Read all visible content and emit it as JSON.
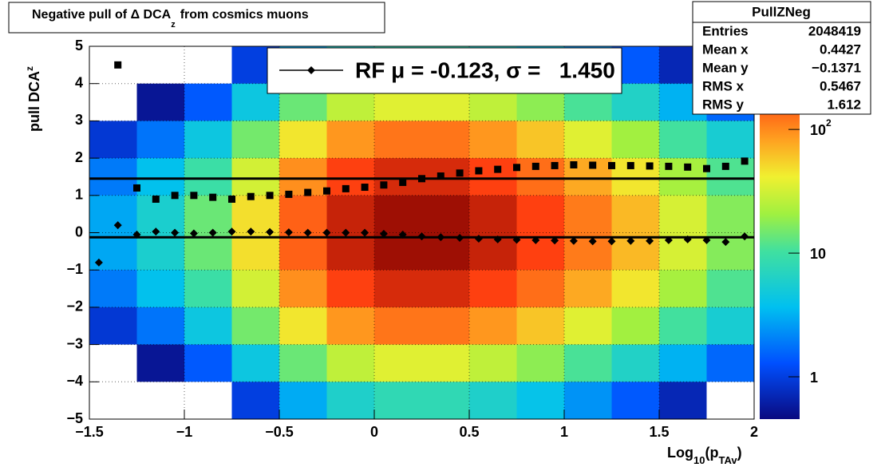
{
  "chart_data": {
    "type": "heatmap_profile",
    "title": {
      "text": "Negative pull of Δ DCA",
      "sub": "z",
      "rest": "from cosmics muons"
    },
    "ylabel": {
      "text": "pull DCA",
      "sub": "z"
    },
    "xlabel": {
      "text": "Log",
      "sub": "10",
      "mid": "(p",
      "subsub": "TAv",
      "end": ")"
    },
    "xlim": [
      -1.5,
      2
    ],
    "ylim": [
      -5,
      5
    ],
    "xticks": [
      {
        "value": -1.5,
        "label": "−1.5"
      },
      {
        "value": -1,
        "label": "−1"
      },
      {
        "value": -0.5,
        "label": "−0.5"
      },
      0,
      0.5,
      1,
      1.5,
      2
    ],
    "yticks": [
      {
        "value": -5,
        "label": "−5"
      },
      {
        "value": -4,
        "label": "−4"
      },
      {
        "value": -3,
        "label": "−3"
      },
      {
        "value": -2,
        "label": "−2"
      },
      {
        "value": -1,
        "label": "−1"
      },
      0,
      1,
      2,
      3,
      4,
      5
    ],
    "grid": true,
    "zlim": [
      0.455,
      470
    ],
    "zlog": true,
    "zticks": [
      1,
      10,
      {
        "value": 100,
        "label": "10",
        "exponent": "2"
      }
    ],
    "xbins": [
      -1.5,
      -1.25,
      -1,
      -0.75,
      -0.5,
      -0.25,
      0,
      0.25,
      0.5,
      0.75,
      1,
      1.25,
      1.5,
      1.75,
      2
    ],
    "ybins": [
      5,
      4,
      3,
      2,
      1,
      0,
      -1,
      -2,
      -3,
      -4,
      -5
    ],
    "z": [
      [
        0.06,
        0.12,
        0.3,
        1,
        3,
        6,
        8,
        8,
        6,
        4,
        2.4,
        1.4,
        0.7,
        0.36
      ],
      [
        0.27,
        0.54,
        1.4,
        4.5,
        14,
        27,
        36,
        36,
        27,
        18,
        11,
        6.3,
        3.2,
        1.6
      ],
      [
        0.9,
        1.8,
        4.5,
        15,
        45,
        90,
        120,
        120,
        90,
        60,
        36,
        21,
        10.5,
        5.4
      ],
      [
        1.9,
        3.8,
        9.6,
        32,
        96,
        192,
        256,
        256,
        192,
        128,
        77,
        45,
        22,
        11.5
      ],
      [
        2.9,
        5.7,
        14,
        48,
        143,
        285,
        380,
        380,
        285,
        190,
        114,
        67,
        33,
        17
      ],
      [
        2.9,
        5.7,
        14,
        48,
        143,
        285,
        380,
        380,
        285,
        190,
        114,
        67,
        33,
        17
      ],
      [
        1.9,
        3.8,
        9.6,
        32,
        96,
        192,
        256,
        256,
        192,
        128,
        77,
        45,
        22,
        11.5
      ],
      [
        0.9,
        1.8,
        4.5,
        15,
        45,
        90,
        120,
        120,
        90,
        60,
        36,
        21,
        10.5,
        5.4
      ],
      [
        0.27,
        0.54,
        1.4,
        4.5,
        14,
        27,
        36,
        36,
        27,
        18,
        11,
        6.3,
        3.2,
        1.6
      ],
      [
        0.06,
        0.12,
        0.3,
        1,
        3,
        6,
        8,
        8,
        6,
        4,
        2.4,
        1.4,
        0.7,
        0.36
      ]
    ],
    "x": [
      -1.45,
      -1.35,
      -1.25,
      -1.15,
      -1.05,
      -0.95,
      -0.85,
      -0.75,
      -0.65,
      -0.55,
      -0.45,
      -0.35,
      -0.25,
      -0.15,
      -0.05,
      0.05,
      0.15,
      0.25,
      0.35,
      0.45,
      0.55,
      0.65,
      0.75,
      0.85,
      0.95,
      1.05,
      1.15,
      1.25,
      1.35,
      1.45,
      1.55,
      1.65,
      1.75,
      1.85,
      1.95
    ],
    "series": [
      {
        "marker": "square",
        "color": "#000000",
        "values": [
          null,
          4.5,
          1.2,
          0.9,
          1.0,
          1.0,
          0.95,
          0.9,
          0.97,
          1.0,
          1.03,
          1.08,
          1.12,
          1.18,
          1.22,
          1.28,
          1.35,
          1.45,
          1.52,
          1.6,
          1.66,
          1.7,
          1.75,
          1.78,
          1.8,
          1.82,
          1.81,
          1.8,
          1.8,
          1.79,
          1.78,
          1.76,
          1.72,
          1.78,
          1.92
        ]
      },
      {
        "marker": "diamond",
        "color": "#000000",
        "values": [
          -0.8,
          0.2,
          -0.05,
          0.03,
          0.0,
          -0.02,
          0.0,
          0.03,
          0.03,
          0.02,
          0.01,
          0.0,
          0.0,
          0.0,
          0.0,
          -0.03,
          -0.05,
          -0.1,
          -0.12,
          -0.14,
          -0.16,
          -0.18,
          -0.19,
          -0.2,
          -0.21,
          -0.22,
          -0.23,
          -0.23,
          -0.22,
          -0.22,
          -0.2,
          -0.18,
          -0.2,
          -0.25,
          -0.1
        ]
      }
    ],
    "fit_lines": [
      -0.123,
      1.45
    ],
    "legend": "RF μ = -0.123, σ =   1.450",
    "stats": {
      "name": "PullZNeg",
      "rows": [
        [
          "Entries",
          "2048419"
        ],
        [
          "Mean x",
          "0.4427"
        ],
        [
          "Mean y",
          "−0.1371"
        ],
        [
          "RMS x",
          "0.5467"
        ],
        [
          "RMS y",
          "1.612"
        ]
      ]
    }
  }
}
